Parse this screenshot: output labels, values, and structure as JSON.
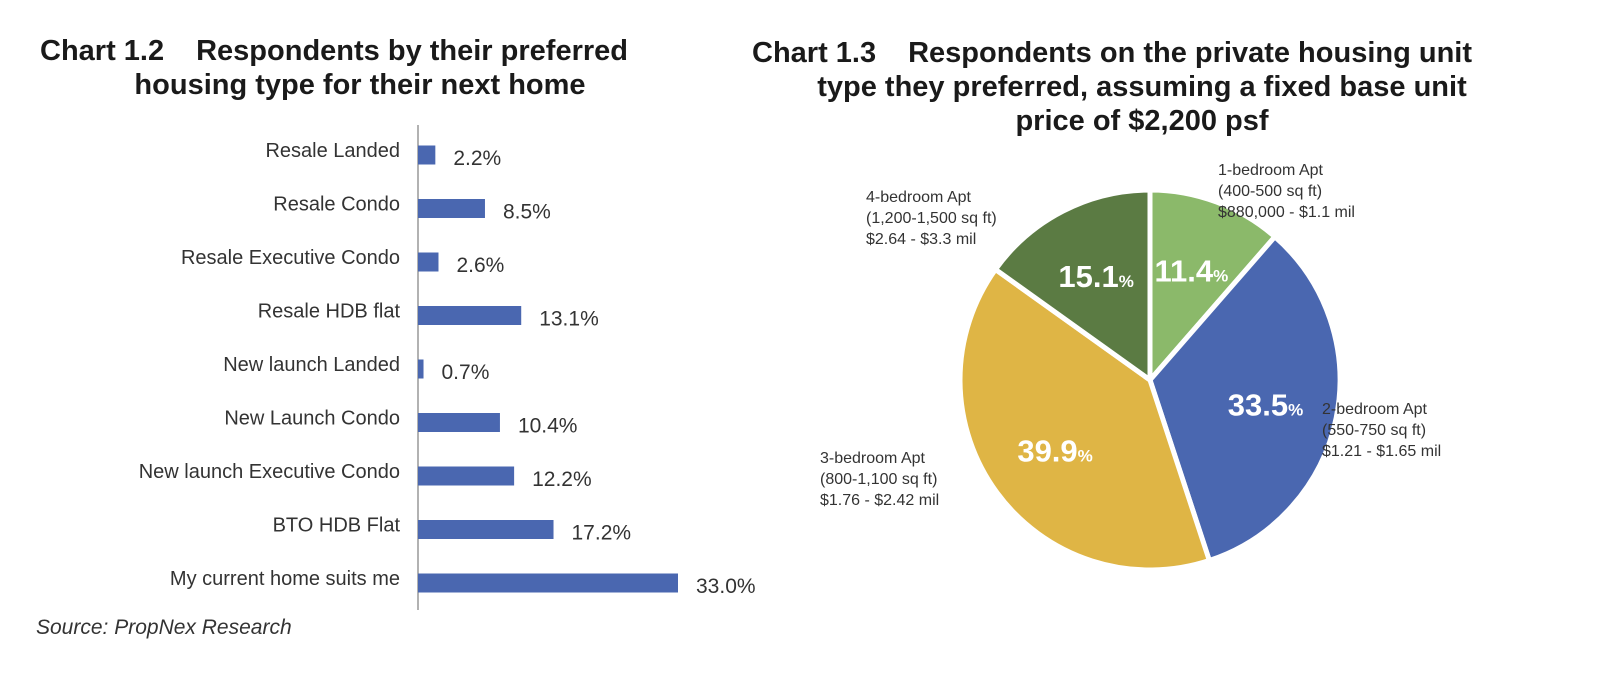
{
  "left_title": {
    "number": "Chart 1.2",
    "line1": "Respondents by their preferred",
    "line2": "housing type for their next home"
  },
  "right_title": {
    "number": "Chart 1.3",
    "line1": "Respondents on the private housing unit",
    "line2": "type they preferred, assuming a fixed base unit",
    "line3": "price of $2,200 psf"
  },
  "source": "Source: PropNex Research",
  "chart_data": [
    {
      "type": "bar",
      "orientation": "horizontal",
      "title": "Chart 1.2 Respondents by their preferred housing type for their next home",
      "categories": [
        "Resale Landed",
        "Resale Condo",
        "Resale Executive Condo",
        "Resale HDB flat",
        "New launch Landed",
        "New Launch Condo",
        "New launch Executive Condo",
        "BTO HDB Flat",
        "My current home suits me"
      ],
      "values": [
        2.2,
        8.5,
        2.6,
        13.1,
        0.7,
        10.4,
        12.2,
        17.2,
        33.0
      ],
      "value_labels": [
        "2.2%",
        "8.5%",
        "2.6%",
        "13.1%",
        "0.7%",
        "10.4%",
        "12.2%",
        "17.2%",
        "33.0%"
      ],
      "unit": "%",
      "color": "#4a67b0",
      "xlim": [
        0,
        33.0
      ]
    },
    {
      "type": "pie",
      "title": "Chart 1.3 Respondents on the private housing unit type they preferred, assuming a fixed base unit price of $2,200 psf",
      "slices": [
        {
          "name": "1-bedroom Apt",
          "size": "(400-500 sq ft)",
          "price": "$880,000 - $1.1 mil",
          "value": 11.4,
          "color": "#8bb96a"
        },
        {
          "name": "2-bedroom Apt",
          "size": "(550-750 sq ft)",
          "price": "$1.21 - $1.65 mil",
          "value": 33.5,
          "color": "#4a67b0"
        },
        {
          "name": "3-bedroom Apt",
          "size": "(800-1,100 sq ft)",
          "price": "$1.76 - $2.42 mil",
          "value": 39.9,
          "color": "#dfb545"
        },
        {
          "name": "4-bedroom Apt",
          "size": "(1,200-1,500 sq ft)",
          "price": "$2.64 - $3.3 mil",
          "value": 15.1,
          "color": "#5b7b43"
        }
      ],
      "percent_symbol": "%",
      "start": "12 o'clock, clockwise"
    }
  ]
}
